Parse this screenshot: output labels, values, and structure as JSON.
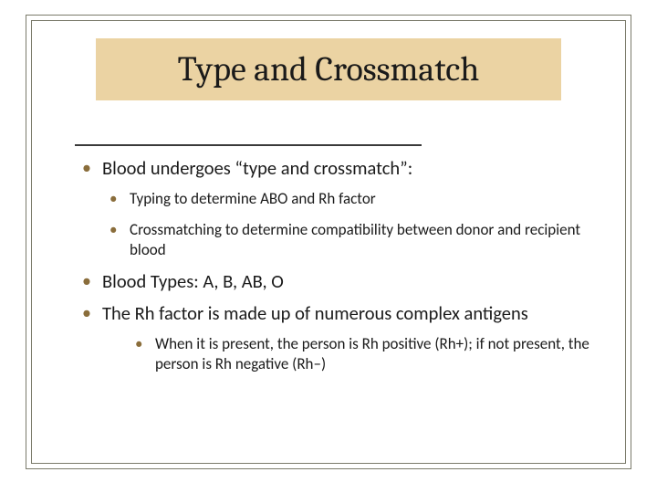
{
  "colors": {
    "background": "#ffffff",
    "title_band": "#ebd3a3",
    "border": "#7a7a6a",
    "bullet": "#8a6d3b",
    "text": "#1a1a1a",
    "hr": "#3a3a3a"
  },
  "typography": {
    "title_font": "Cambria, Georgia, serif",
    "title_size_pt": 28,
    "body_font": "Calibri, sans-serif",
    "lvl1_size_pt": 15,
    "lvl2_size_pt": 13
  },
  "title": "Type and Crossmatch",
  "bullets": [
    {
      "text": "Blood undergoes “type and crossmatch”:",
      "children": [
        {
          "text": "Typing to determine ABO and Rh factor"
        },
        {
          "text": "Crossmatching to determine compatibility between donor and recipient blood"
        }
      ]
    },
    {
      "text": "Blood Types: A, B, AB, O",
      "children": []
    },
    {
      "text": "The Rh factor is made up of numerous complex antigens",
      "children": [
        {
          "text": "When it is present, the person is Rh positive (Rh+); if not present, the person is Rh negative (Rh–)"
        }
      ]
    }
  ]
}
